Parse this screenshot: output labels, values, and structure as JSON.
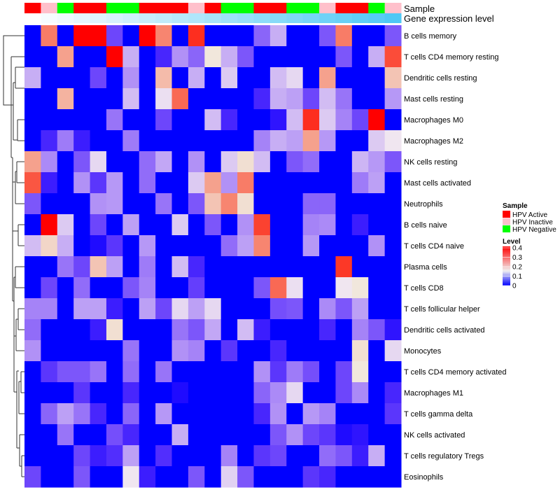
{
  "chart_data": {
    "type": "heatmap",
    "annotation_labels": {
      "sample": "Sample",
      "gene_expression": "Gene expression level"
    },
    "rows": [
      "B cells memory",
      "T cells CD4 memory resting",
      "Dendritic cells resting",
      "Mast cells resting",
      "Macrophages M0",
      "Macrophages M2",
      "NK cells resting",
      "Mast cells activated",
      "Neutrophils",
      "B cells naive",
      "T cells CD4 naive",
      "Plasma cells",
      "T cells CD8",
      "T cells follicular helper",
      "Dendritic cells activated",
      "Monocytes",
      "T cells CD4 memory activated",
      "Macrophages M1",
      "T cells gamma delta",
      "NK cells activated",
      "T cells regulatory  Tregs",
      "Eosinophils"
    ],
    "sample_groups": [
      "HPV Active",
      "HPV Inactive",
      "HPV Negative",
      "HPV Active",
      "HPV Active",
      "HPV Negative",
      "HPV Negative",
      "HPV Active",
      "HPV Active",
      "HPV Active",
      "HPV Inactive",
      "HPV Active",
      "HPV Negative",
      "HPV Negative",
      "HPV Active",
      "HPV Active",
      "HPV Negative",
      "HPV Negative",
      "HPV Inactive",
      "HPV Active",
      "HPV Active",
      "HPV Negative",
      "HPV Inactive"
    ],
    "gene_expression_rank": [
      0,
      0.05,
      0.09,
      0.14,
      0.18,
      0.23,
      0.27,
      0.32,
      0.36,
      0.41,
      0.45,
      0.5,
      0.55,
      0.59,
      0.64,
      0.68,
      0.73,
      0.77,
      0.82,
      0.86,
      0.91,
      0.95,
      1
    ],
    "values": [
      [
        0,
        0.28,
        0,
        0.4,
        0.4,
        0.04,
        0,
        0.4,
        0.27,
        0,
        0.36,
        0,
        0,
        0,
        0.06,
        0.11,
        0,
        0,
        0.05,
        0.28,
        0,
        0,
        0.05
      ],
      [
        0,
        0,
        0.24,
        0,
        0,
        0.4,
        0.11,
        0,
        0.02,
        0.09,
        0.06,
        0.16,
        0.11,
        0.05,
        0,
        0,
        0,
        0,
        0,
        0.05,
        0,
        0.11,
        0.33
      ],
      [
        0.11,
        0,
        0,
        0,
        0.04,
        0,
        0.09,
        0,
        0.21,
        0,
        0.11,
        0,
        0.13,
        0,
        0,
        0.12,
        0.14,
        0,
        0.24,
        0,
        0,
        0,
        0.2
      ],
      [
        0,
        0,
        0.22,
        0,
        0,
        0,
        0.12,
        0,
        0.145,
        0.3,
        0,
        0,
        0,
        0,
        0.02,
        0.11,
        0.1,
        0.04,
        0.12,
        0.07,
        0,
        0,
        0.095
      ],
      [
        0,
        0,
        0,
        0,
        0,
        0.07,
        0,
        0,
        0.04,
        0,
        0,
        0.12,
        0.02,
        0,
        0,
        0.01,
        0.12,
        0.36,
        0.13,
        0.08,
        0.04,
        0.4,
        0
      ],
      [
        0,
        0.02,
        0.075,
        0.015,
        0,
        0,
        0.075,
        0,
        0,
        0,
        0,
        0,
        0,
        0,
        0.08,
        0.11,
        0.1,
        0.24,
        0.095,
        0,
        0,
        0.13,
        0.15
      ],
      [
        0.24,
        0.085,
        0,
        0.05,
        0.14,
        0,
        0,
        0.065,
        0.105,
        0,
        0.09,
        0,
        0.13,
        0.17,
        0.12,
        0,
        0.05,
        0.065,
        0,
        0,
        0.115,
        0.095,
        0.05
      ],
      [
        0.32,
        0.015,
        0,
        0.09,
        0.03,
        0.095,
        0,
        0.065,
        0,
        0,
        0.13,
        0.24,
        0.09,
        0.28,
        0,
        0,
        0,
        0,
        0,
        0,
        0.075,
        0.1,
        0
      ],
      [
        0.05,
        0,
        0,
        0,
        0.09,
        0.095,
        0,
        0,
        0.07,
        0,
        0.05,
        0.2,
        0.27,
        0.17,
        0,
        0,
        0,
        0.06,
        0.06,
        0,
        0,
        0,
        0
      ],
      [
        0,
        0.4,
        0.13,
        0,
        0.04,
        0,
        0.1,
        0,
        0,
        0.13,
        0,
        0.05,
        0,
        0.09,
        0.34,
        0,
        0,
        0.08,
        0.085,
        0,
        0.015,
        0,
        0
      ],
      [
        0.12,
        0.18,
        0.11,
        0,
        0.005,
        0.03,
        0,
        0.095,
        0,
        0,
        0,
        0,
        0.065,
        0.1,
        0.27,
        0,
        0,
        0.095,
        0,
        0,
        0,
        0.09,
        0
      ],
      [
        0,
        0,
        0.07,
        0.04,
        0.2,
        0.1,
        0,
        0.075,
        0,
        0.12,
        0.02,
        0,
        0,
        0,
        0,
        0,
        0,
        0,
        0,
        0.35,
        0,
        0,
        0
      ],
      [
        0,
        0.04,
        0,
        0.065,
        0,
        0,
        0.05,
        0.08,
        0,
        0,
        0.035,
        0,
        0,
        0,
        0.05,
        0.3,
        0.145,
        0,
        0,
        0.15,
        0.16,
        0,
        0
      ],
      [
        0.08,
        0.08,
        0,
        0.1,
        0.1,
        0.015,
        0,
        0.1,
        0.04,
        0.14,
        0.1,
        0.14,
        0,
        0,
        0,
        0.045,
        0.05,
        0,
        0.085,
        0.05,
        0.1,
        0,
        0
      ],
      [
        0.065,
        0,
        0,
        0,
        0.015,
        0.17,
        0,
        0,
        0,
        0.07,
        0.05,
        0.105,
        0,
        0.12,
        0.015,
        0,
        0,
        0,
        0.02,
        0,
        0.08,
        0.05,
        0.01
      ],
      [
        0.09,
        0,
        0,
        0,
        0,
        0,
        0.07,
        0,
        0,
        0.09,
        0.08,
        0,
        0.03,
        0,
        0,
        0.02,
        0,
        0,
        0,
        0,
        0.17,
        0,
        0.14
      ],
      [
        0,
        0.03,
        0.05,
        0.05,
        0.07,
        0,
        0.065,
        0,
        0.07,
        0,
        0,
        0,
        0,
        0,
        0.09,
        0.03,
        0.075,
        0.045,
        0,
        0.04,
        0.16,
        0,
        0
      ],
      [
        0,
        0,
        0,
        0.03,
        0,
        0,
        0.02,
        0,
        0,
        0.005,
        0,
        0,
        0,
        0,
        0.06,
        0.085,
        0.14,
        0,
        0,
        0.04,
        0.085,
        0,
        0.02
      ],
      [
        0,
        0.06,
        0.1,
        0.07,
        0.02,
        0,
        0.06,
        0,
        0.095,
        0,
        0,
        0,
        0,
        0,
        0.02,
        0.09,
        0,
        0.095,
        0.08,
        0,
        0,
        0,
        0.03
      ],
      [
        0,
        0,
        0.07,
        0,
        0,
        0.045,
        0.02,
        0,
        0,
        0.11,
        0,
        0,
        0,
        0,
        0,
        0.05,
        0.09,
        0.04,
        0.03,
        0.005,
        0.01,
        0,
        0
      ],
      [
        0,
        0,
        0,
        0.04,
        0.015,
        0.025,
        0.1,
        0,
        0.025,
        0,
        0,
        0,
        0.08,
        0,
        0.03,
        0.04,
        0,
        0,
        0.065,
        0.05,
        0.015,
        0.11,
        0
      ],
      [
        0.04,
        0,
        0,
        0.05,
        0,
        0,
        0.15,
        0.015,
        0,
        0,
        0.05,
        0,
        0.135,
        0.05,
        0,
        0,
        0,
        0.03,
        0.02,
        0,
        0,
        0,
        0
      ]
    ],
    "legend": {
      "sample_title": "Sample",
      "sample_entries": [
        {
          "label": "HPV Active",
          "color": "#FF0000"
        },
        {
          "label": "HPV Inactive",
          "color": "#FFC0CB"
        },
        {
          "label": "HPV Negative",
          "color": "#00FF00"
        }
      ],
      "level_title": "Level",
      "level_ticks": [
        "0.4",
        "0.3",
        "0.2",
        "0.1",
        "0"
      ],
      "level_range": [
        0,
        0.4
      ],
      "low_color": "#0000FF",
      "mid_color": "#F0F0F0",
      "high_color": "#FF0000",
      "gene_high_color": "#4FC8F5"
    }
  }
}
